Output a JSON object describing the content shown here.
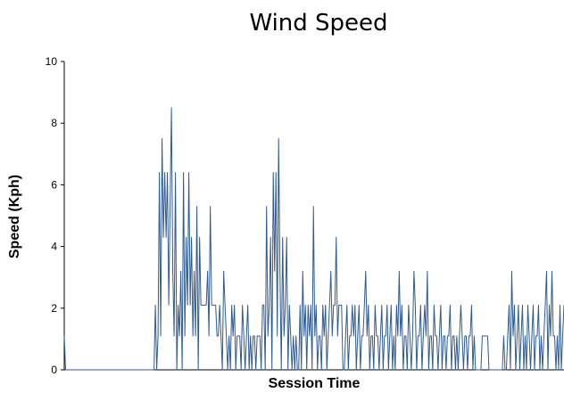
{
  "chart_data": {
    "type": "line",
    "title": "Wind Speed",
    "xlabel": "Session Time",
    "ylabel": "Speed (Kph)",
    "ylim": [
      0,
      10
    ],
    "yticks": [
      0,
      2,
      4,
      6,
      8,
      10
    ],
    "x_tick_labels": "none",
    "grid": false,
    "legend": "none",
    "series": [
      {
        "color": "#2f5b93",
        "values": [
          1.1,
          0,
          0,
          0,
          0,
          0,
          0,
          0,
          0,
          0,
          0,
          0,
          0,
          0,
          0,
          0,
          0,
          0,
          0,
          0,
          0,
          0,
          0,
          0,
          0,
          0,
          0,
          0,
          0,
          0,
          0,
          0,
          0,
          0,
          0,
          0,
          0,
          0,
          0,
          0,
          0,
          0,
          0,
          0,
          0,
          0,
          0,
          0,
          0,
          0,
          0,
          0,
          0,
          0,
          0,
          0,
          0,
          0,
          0,
          0,
          0,
          0,
          0,
          0,
          0,
          0,
          0,
          0,
          2.1,
          0,
          1.1,
          6.4,
          1.1,
          7.5,
          4.3,
          6.4,
          4.3,
          6.4,
          2.1,
          5.3,
          8.5,
          3.2,
          1.1,
          6.4,
          0,
          2.1,
          1.1,
          3.2,
          0,
          6.4,
          1.1,
          4.3,
          2.1,
          6.4,
          2.1,
          4.3,
          1.1,
          3.2,
          1.1,
          5.3,
          0,
          4.3,
          2.1,
          2.1,
          2.1,
          2.1,
          2.1,
          3.2,
          1.1,
          5.3,
          2.1,
          2.1,
          2.1,
          2.1,
          1.1,
          1.1,
          2.1,
          1.1,
          0,
          3.2,
          2.1,
          1.1,
          0,
          1.1,
          0,
          2.1,
          1.1,
          2.1,
          0,
          1.1,
          1.1,
          1.1,
          0,
          2.1,
          1.1,
          0,
          1.1,
          2.1,
          0,
          1.1,
          0,
          1.1,
          1.1,
          0,
          1.1,
          1.1,
          1.1,
          0,
          2.1,
          2.1,
          0,
          5.3,
          1.1,
          2.1,
          4.3,
          0,
          6.4,
          3.2,
          6.4,
          1.1,
          7.5,
          3.2,
          0,
          4.3,
          1.1,
          2.1,
          4.3,
          0,
          2.1,
          1.1,
          0,
          1.1,
          0,
          1.1,
          0,
          0,
          2.1,
          0,
          3.2,
          1.1,
          2.1,
          0,
          2.1,
          1.1,
          2.1,
          0,
          5.3,
          1.1,
          2.1,
          0,
          1.1,
          1.1,
          0,
          2.1,
          1.1,
          2.1,
          0,
          1.1,
          2.1,
          3.2,
          1.1,
          2.1,
          2.1,
          4.3,
          1.1,
          2.1,
          2.1,
          2.1,
          0,
          0,
          1.1,
          2.1,
          0,
          1.1,
          1.1,
          2.1,
          1.1,
          2.1,
          0,
          1.1,
          2.1,
          0,
          1.1,
          1.1,
          2.1,
          3.2,
          1.1,
          2.1,
          0,
          1.1,
          1.1,
          0,
          2.1,
          1.1,
          1.1,
          0,
          1.1,
          2.1,
          0,
          1.1,
          1.1,
          2.1,
          0,
          1.1,
          2.1,
          0,
          1.1,
          0,
          2.1,
          1.1,
          3.2,
          1.1,
          2.1,
          0,
          1.1,
          1.1,
          0,
          2.1,
          1.1,
          0,
          1.1,
          3.2,
          2.1,
          0,
          1.1,
          1.1,
          2.1,
          0,
          1.1,
          2.1,
          1.1,
          3.2,
          0,
          1.1,
          1.1,
          0,
          2.1,
          1.1,
          1.1,
          0,
          1.1,
          2.1,
          0,
          1.1,
          1.1,
          0,
          1.1,
          1.1,
          2.1,
          0,
          1.1,
          1.1,
          0,
          1.1,
          0,
          1.1,
          2.1,
          1.1,
          0,
          1.1,
          1.1,
          0,
          1.1,
          1.1,
          2.1,
          0,
          1.1,
          0,
          0,
          0,
          0,
          0,
          1.1,
          1.1,
          1.1,
          1.1,
          1.1,
          0,
          0,
          0,
          0,
          0,
          0,
          0,
          0,
          0,
          0,
          0,
          1.1,
          0,
          0,
          1.1,
          2.1,
          0,
          3.2,
          1.1,
          2.1,
          0,
          1.1,
          2.1,
          0,
          1.1,
          2.1,
          0,
          1.1,
          0,
          2.1,
          1.1,
          0,
          1.1,
          2.1,
          0,
          1.1,
          1.1,
          2.1,
          0,
          1.1,
          0,
          1.1,
          2.1,
          3.2,
          0,
          2.1,
          1.1,
          3.2,
          1.1,
          1.1,
          0,
          1.1,
          0,
          2.1,
          0,
          1.1,
          2.1
        ]
      }
    ]
  }
}
